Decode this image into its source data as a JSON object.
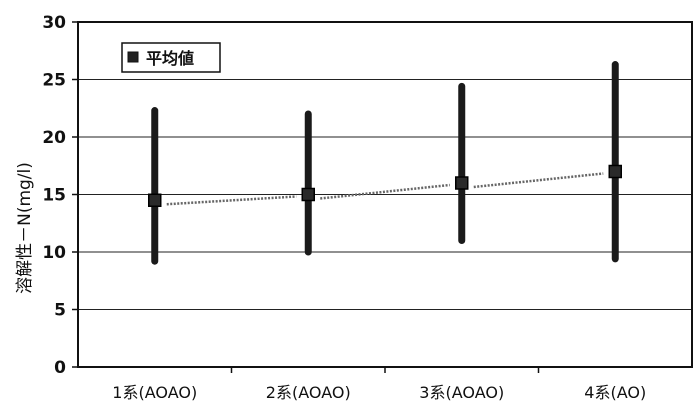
{
  "chart_data": {
    "type": "scatter",
    "title": "",
    "ylabel": "溶解性－N(mg/l)",
    "xlabel": "",
    "ylim": [
      0,
      30
    ],
    "yticks": [
      0,
      5,
      10,
      15,
      20,
      25,
      30
    ],
    "grid": true,
    "legend_position": "top-left",
    "categories": [
      "1系(AOAO)",
      "2系(AOAO)",
      "3系(AOAO)",
      "4系(AO)"
    ],
    "series": [
      {
        "name": "平均値",
        "mean": [
          14.5,
          15.0,
          16.0,
          17.0
        ],
        "min": [
          9.2,
          10.0,
          11.0,
          9.4
        ],
        "max": [
          22.3,
          22.0,
          24.4,
          26.3
        ]
      }
    ],
    "colors": {
      "bar": "#1a1a1a",
      "marker": "#2a2a2a",
      "line": "#666666",
      "grid": "#222222"
    }
  }
}
